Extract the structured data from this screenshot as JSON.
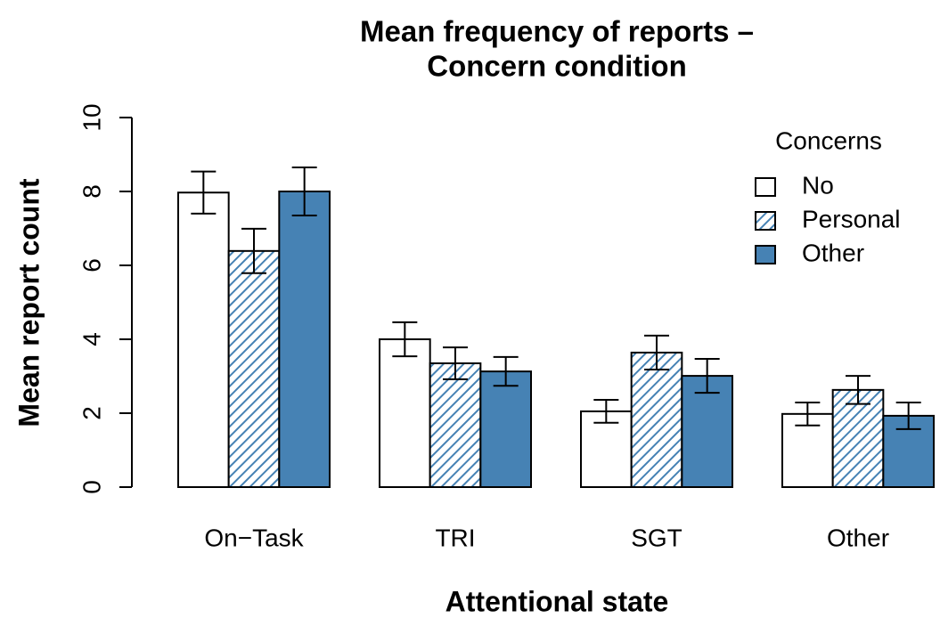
{
  "chart_data": {
    "type": "bar",
    "title": [
      "Mean frequency of reports –",
      "Concern condition"
    ],
    "x_label": "Attentional state",
    "y_label": "Mean report count",
    "categories": [
      "On−Task",
      "TRI",
      "SGT",
      "Other"
    ],
    "legend_title": "Concerns",
    "legend": "top-right",
    "series": [
      {
        "name": "No",
        "color": "#ffffff",
        "pattern": "solid",
        "values": [
          7.97,
          4.0,
          2.05,
          1.98
        ],
        "errors": [
          0.57,
          0.46,
          0.31,
          0.31
        ]
      },
      {
        "name": "Personal",
        "color": "#4682b4",
        "pattern": "hatch",
        "values": [
          6.39,
          3.35,
          3.64,
          2.63
        ],
        "errors": [
          0.6,
          0.43,
          0.46,
          0.38
        ]
      },
      {
        "name": "Other",
        "color": "#4682b4",
        "pattern": "solid",
        "values": [
          8.0,
          3.13,
          3.01,
          1.93
        ],
        "errors": [
          0.65,
          0.39,
          0.46,
          0.36
        ]
      }
    ],
    "ylim": [
      0,
      10
    ],
    "yticks": [
      0,
      2,
      4,
      6,
      8,
      10
    ]
  }
}
